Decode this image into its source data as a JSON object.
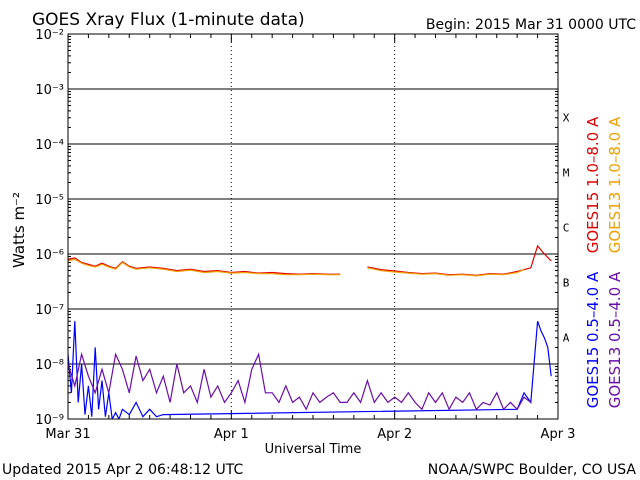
{
  "chart_data": {
    "type": "line",
    "title": "GOES Xray Flux (1-minute data)",
    "begin": "Begin:  2015 Mar 31 0000 UTC",
    "xlabel": "Universal Time",
    "ylabel": "Watts m⁻²",
    "xlim": [
      "2015-03-31T00:00",
      "2015-04-03T00:00"
    ],
    "ylim": [
      1e-09,
      0.01
    ],
    "yscale": "log",
    "x_ticks": [
      "Mar 31",
      "Apr 1",
      "Apr 2",
      "Apr 3"
    ],
    "y_ticks": [
      "10⁻²",
      "10⁻³",
      "10⁻⁴",
      "10⁻⁵",
      "10⁻⁶",
      "10⁻⁷",
      "10⁻⁸",
      "10⁻⁹"
    ],
    "flare_classes": [
      "X",
      "M",
      "C",
      "B",
      "A"
    ],
    "grid": true,
    "legend_position": "right",
    "series": [
      {
        "name": "GOES15 1.0–8.0 A",
        "color": "#e00000",
        "x_hours": [
          0,
          1,
          2,
          3,
          4,
          5,
          6,
          7,
          8,
          9,
          10,
          12,
          14,
          16,
          18,
          20,
          22,
          24,
          26,
          28,
          30,
          32,
          34,
          36,
          38,
          40,
          42,
          44,
          46,
          48,
          50,
          52,
          54,
          56,
          58,
          60,
          62,
          64,
          66,
          68,
          69,
          70,
          71
        ],
        "values": [
          8e-07,
          8.5e-07,
          7e-07,
          6.5e-07,
          6e-07,
          6.8e-07,
          6e-07,
          5.5e-07,
          7.2e-07,
          6e-07,
          5.5e-07,
          5.8e-07,
          5.5e-07,
          5e-07,
          5.3e-07,
          4.8e-07,
          5e-07,
          4.6e-07,
          4.8e-07,
          4.5e-07,
          4.6e-07,
          4.4e-07,
          4.3e-07,
          4.4e-07,
          4.3e-07,
          4.3e-07,
          null,
          5.8e-07,
          5.2e-07,
          4.9e-07,
          4.6e-07,
          4.4e-07,
          4.5e-07,
          4.2e-07,
          4.3e-07,
          4.1e-07,
          4.4e-07,
          4.3e-07,
          4.8e-07,
          5.6e-07,
          1.4e-06,
          1e-06,
          7.5e-07
        ]
      },
      {
        "name": "GOES13 1.0–8.0 A",
        "color": "#f0a000",
        "x_hours": [
          0,
          1,
          2,
          3,
          4,
          5,
          6,
          7,
          8,
          9,
          10,
          12,
          14,
          16,
          18,
          20,
          22,
          24,
          26,
          28,
          30,
          32,
          34,
          36,
          38,
          40,
          42,
          44,
          46,
          48,
          50,
          52,
          54,
          56,
          58,
          60,
          62,
          64,
          66,
          67
        ],
        "values": [
          7.5e-07,
          8e-07,
          6.8e-07,
          6.2e-07,
          5.8e-07,
          6.5e-07,
          5.8e-07,
          5.3e-07,
          7e-07,
          5.8e-07,
          5.3e-07,
          5.6e-07,
          5.3e-07,
          4.8e-07,
          5.1e-07,
          4.6e-07,
          4.8e-07,
          4.5e-07,
          4.6e-07,
          4.4e-07,
          4.4e-07,
          4.2e-07,
          4.2e-07,
          4.3e-07,
          4.2e-07,
          4.2e-07,
          null,
          5.6e-07,
          5e-07,
          4.7e-07,
          4.5e-07,
          4.3e-07,
          4.4e-07,
          4.1e-07,
          4.2e-07,
          4e-07,
          4.3e-07,
          4.2e-07,
          4.6e-07,
          5.2e-07
        ]
      },
      {
        "name": "GOES15 0.5–4.0 A",
        "color": "#0000ff",
        "x_hours": [
          0,
          0.5,
          1,
          1.5,
          2,
          2.5,
          3,
          3.5,
          4,
          4.5,
          5,
          5.5,
          6,
          6.5,
          7,
          7.5,
          8,
          9,
          10,
          11,
          12,
          13,
          14,
          66,
          67,
          68,
          69,
          69.5,
          70,
          70.5,
          71
        ],
        "values": [
          1.5e-08,
          3e-09,
          6e-08,
          2e-09,
          1e-08,
          1.2e-09,
          4e-09,
          1.1e-09,
          2e-08,
          1.5e-09,
          5e-09,
          1.1e-09,
          3e-09,
          1e-09,
          1.3e-09,
          1e-09,
          1.5e-09,
          1.2e-09,
          2e-09,
          1.1e-09,
          1.5e-09,
          1.1e-09,
          1.2e-09,
          1.5e-09,
          3e-09,
          2e-09,
          6e-08,
          4e-08,
          3e-08,
          2e-08,
          6e-09
        ]
      },
      {
        "name": "GOES13 0.5–4.0 A",
        "color": "#6a0dad",
        "x_hours": [
          0,
          1,
          2,
          3,
          4,
          5,
          6,
          7,
          8,
          9,
          10,
          11,
          12,
          13,
          14,
          15,
          16,
          17,
          18,
          19,
          20,
          21,
          22,
          23,
          24,
          25,
          26,
          27,
          28,
          29,
          30,
          31,
          32,
          33,
          34,
          35,
          36,
          37,
          38,
          39,
          40,
          41,
          42,
          43,
          44,
          45,
          46,
          47,
          48,
          49,
          50,
          51,
          52,
          53,
          54,
          55,
          56,
          57,
          58,
          59,
          60,
          61,
          62,
          63,
          64,
          65,
          66,
          67,
          68
        ],
        "values": [
          1e-08,
          4e-09,
          1.5e-08,
          6e-09,
          3e-09,
          8e-09,
          3e-09,
          1.5e-08,
          8e-09,
          3e-09,
          1.4e-08,
          5e-09,
          8e-09,
          3e-09,
          6e-09,
          2e-09,
          1e-08,
          3e-09,
          4e-09,
          2e-09,
          8e-09,
          2.5e-09,
          4e-09,
          2e-09,
          3e-09,
          5e-09,
          2e-09,
          8e-09,
          1.5e-08,
          3e-09,
          3e-09,
          2e-09,
          4e-09,
          2e-09,
          2.5e-09,
          1.5e-09,
          3e-09,
          2e-09,
          2.5e-09,
          3e-09,
          2e-09,
          2e-09,
          3e-09,
          2e-09,
          5e-09,
          2e-09,
          3e-09,
          2e-09,
          2.5e-09,
          2e-09,
          3e-09,
          2e-09,
          1.5e-09,
          3e-09,
          2e-09,
          3e-09,
          1.5e-09,
          2.5e-09,
          2e-09,
          3e-09,
          1.5e-09,
          2e-09,
          1.8e-09,
          3e-09,
          1.5e-09,
          2e-09,
          1.5e-09,
          2.5e-09,
          2e-09
        ]
      }
    ]
  },
  "footer": {
    "updated": "Updated 2015 Apr  2 06:48:12 UTC",
    "credit": "NOAA/SWPC Boulder, CO USA"
  }
}
